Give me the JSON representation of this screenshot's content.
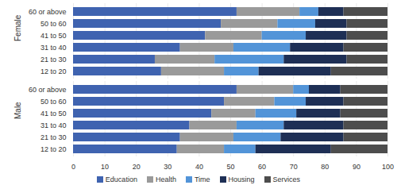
{
  "chart_data": {
    "type": "bar",
    "orientation": "horizontal",
    "stacked": true,
    "grid": true,
    "legend": "bottom",
    "xlim": [
      0,
      100
    ],
    "xticks": [
      0,
      10,
      20,
      30,
      40,
      50,
      60,
      70,
      80,
      90,
      100
    ],
    "categories": [
      "60 or above",
      "50 to 60",
      "41 to 50",
      "31 to 40",
      "21 to 30",
      "12 to 20",
      "60 or above",
      "50 to 60",
      "41 to 50",
      "31 to 40",
      "21 to 30",
      "12 to 20"
    ],
    "groups": [
      "Female",
      "Female",
      "Female",
      "Female",
      "Female",
      "Female",
      "Male",
      "Male",
      "Male",
      "Male",
      "Male",
      "Male"
    ],
    "series": [
      {
        "name": "Education",
        "color": "#3f63b0",
        "values": [
          52,
          47,
          42,
          34,
          26,
          28,
          52,
          48,
          44,
          37,
          34,
          33
        ]
      },
      {
        "name": "Health",
        "color": "#9a9a9a",
        "values": [
          20,
          18,
          18,
          17,
          19,
          20,
          18,
          16,
          14,
          15,
          17,
          15
        ]
      },
      {
        "name": "Time",
        "color": "#5294d8",
        "values": [
          6,
          12,
          14,
          18,
          22,
          11,
          5,
          10,
          13,
          15,
          15,
          10
        ]
      },
      {
        "name": "Housing",
        "color": "#1e2f55",
        "values": [
          8,
          10,
          13,
          17,
          20,
          23,
          10,
          12,
          14,
          19,
          20,
          24
        ]
      },
      {
        "name": "Services",
        "color": "#4d4d4d",
        "values": [
          14,
          13,
          13,
          14,
          13,
          18,
          15,
          14,
          15,
          14,
          14,
          18
        ]
      }
    ]
  }
}
